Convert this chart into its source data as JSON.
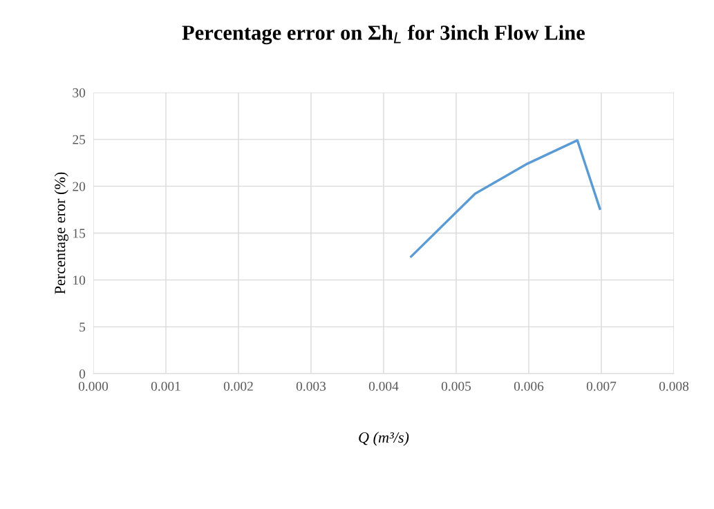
{
  "chart_data": {
    "type": "line",
    "title": "Percentage error on Σh$_{L}$ for 3inch Flow Line",
    "xlabel": "Q (m³/s)",
    "ylabel": "Percentage eror (%)",
    "x": [
      0.00438,
      0.00526,
      0.00598,
      0.00667,
      0.00698
    ],
    "series": [
      {
        "color": "#5b9bd5",
        "values": [
          12.5,
          19.2,
          22.4,
          24.9,
          17.6
        ]
      }
    ],
    "xlim": [
      0,
      0.008
    ],
    "xticks": [
      {
        "value": 0,
        "label": "0.000"
      },
      {
        "value": 0.001,
        "label": "0.001"
      },
      {
        "value": 0.002,
        "label": "0.002"
      },
      {
        "value": 0.003,
        "label": "0.003"
      },
      {
        "value": 0.004,
        "label": "0.004"
      },
      {
        "value": 0.005,
        "label": "0.005"
      },
      {
        "value": 0.006,
        "label": "0.006"
      },
      {
        "value": 0.007,
        "label": "0.007"
      },
      {
        "value": 0.008,
        "label": "0.008"
      }
    ],
    "ylim": [
      0,
      30
    ],
    "yticks": [
      0,
      5,
      10,
      15,
      20,
      25,
      30
    ],
    "grid": true,
    "marker": "none",
    "line_style": "solid"
  }
}
